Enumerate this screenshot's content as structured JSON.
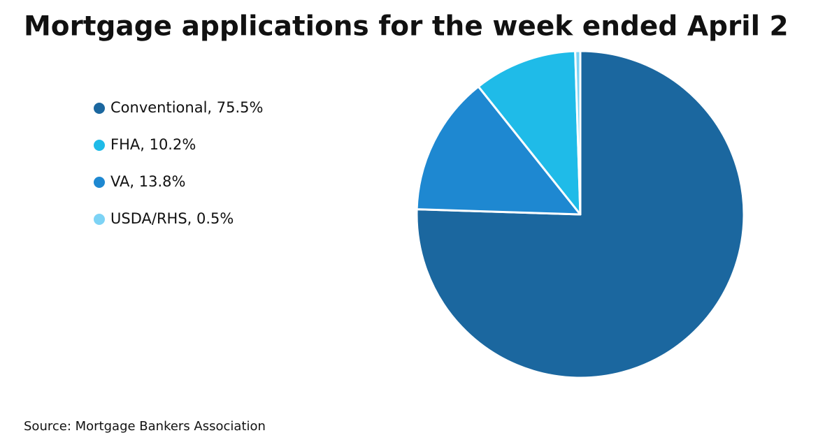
{
  "chart_data": {
    "type": "pie",
    "title": "Mortgage applications for the week ended April 2",
    "categories": [
      "Conventional, 75.5%",
      "VA, 13.8%",
      "FHA, 10.2%",
      "USDA/RHS, 0.5%"
    ],
    "values": [
      75.5,
      13.8,
      10.2,
      0.5
    ],
    "colors": [
      "#1b679f",
      "#1e88d1",
      "#1fbbe8",
      "#7dd3f5"
    ],
    "source": "Source: Mortgage Bankers Association"
  }
}
